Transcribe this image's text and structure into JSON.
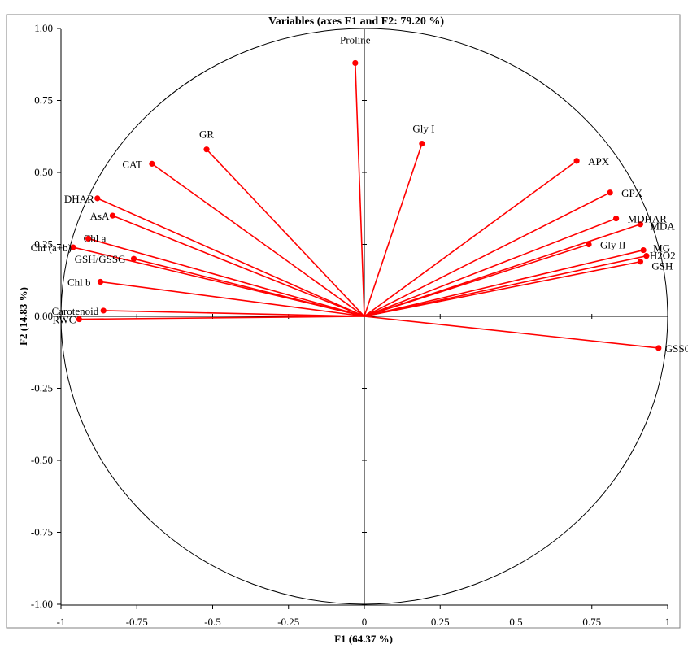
{
  "chart_data": {
    "type": "scatter",
    "subtype": "pca-correlation-circle",
    "title": "Variables (axes F1 and F2: 79.20 %)",
    "xlabel": "F1 (64.37 %)",
    "ylabel": "F2 (14.83 %)",
    "xlim": [
      -1,
      1
    ],
    "ylim": [
      -1,
      1
    ],
    "x_ticks": [
      "-1",
      "-0.75",
      "-0.5",
      "-0.25",
      "0",
      "0.25",
      "0.5",
      "0.75",
      "1"
    ],
    "y_ticks": [
      "1.00",
      "0.75",
      "0.50",
      "0.25",
      "0.00",
      "-0.25",
      "-0.50",
      "-0.75",
      "-1.00"
    ],
    "grid": false,
    "series": [
      {
        "name": "",
        "color": "#ff0000",
        "points": [
          {
            "label": "Proline",
            "x": -0.03,
            "y": 0.88
          },
          {
            "label": "Gly I",
            "x": 0.19,
            "y": 0.6
          },
          {
            "label": "GR",
            "x": -0.52,
            "y": 0.58
          },
          {
            "label": "CAT",
            "x": -0.7,
            "y": 0.53
          },
          {
            "label": "APX",
            "x": 0.7,
            "y": 0.54
          },
          {
            "label": "DHAR",
            "x": -0.88,
            "y": 0.41
          },
          {
            "label": "AsA",
            "x": -0.83,
            "y": 0.35
          },
          {
            "label": "GPX",
            "x": 0.81,
            "y": 0.43
          },
          {
            "label": "MDHAR",
            "x": 0.83,
            "y": 0.34
          },
          {
            "label": "MDA",
            "x": 0.91,
            "y": 0.32
          },
          {
            "label": "Chl a",
            "x": -0.91,
            "y": 0.27
          },
          {
            "label": "Chl (a+b)",
            "x": -0.96,
            "y": 0.24
          },
          {
            "label": "GSH/GSSG",
            "x": -0.76,
            "y": 0.2
          },
          {
            "label": "Gly II",
            "x": 0.74,
            "y": 0.25
          },
          {
            "label": "MG",
            "x": 0.92,
            "y": 0.23
          },
          {
            "label": "H2O2",
            "x": 0.93,
            "y": 0.21
          },
          {
            "label": "GSH",
            "x": 0.91,
            "y": 0.19
          },
          {
            "label": "Chl b",
            "x": -0.87,
            "y": 0.12
          },
          {
            "label": "Carotenoid",
            "x": -0.86,
            "y": 0.02
          },
          {
            "label": "RWC",
            "x": -0.94,
            "y": -0.01
          },
          {
            "label": "GSSG",
            "x": 0.97,
            "y": -0.11
          }
        ]
      }
    ]
  }
}
